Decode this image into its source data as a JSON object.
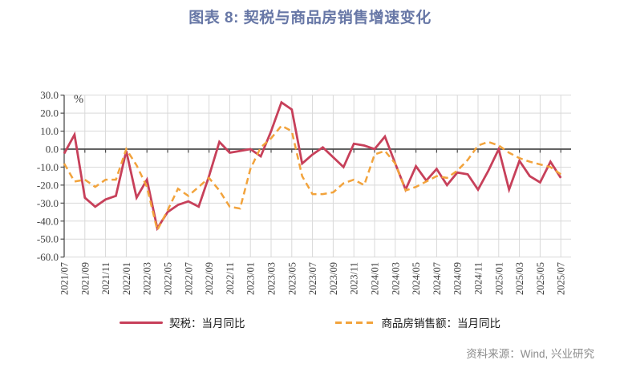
{
  "title": "图表 8: 契税与商品房销售增速变化",
  "unit_label": "%",
  "source": "资料来源：Wind, 兴业研究",
  "colors": {
    "deed_tax": "#c7405a",
    "housing_sales": "#f2a33c",
    "grid": "#d9d9d9",
    "axis": "#4d4d4d",
    "tick_text": "#404040",
    "title_text": "#6777a6",
    "source_text": "#8c8c8c"
  },
  "legend": [
    {
      "label": "契税：当月同比",
      "style": "solid"
    },
    {
      "label": "商品房销售额：当月同比",
      "style": "dashed"
    }
  ],
  "chart_data": {
    "type": "line",
    "title": "图表 8: 契税与商品房销售增速变化",
    "unit": "%",
    "ylim": [
      -60,
      30
    ],
    "ytick_step": 10,
    "ytick_labels": [
      "30.0",
      "20.0",
      "10.0",
      "0.0",
      "-10.0",
      "-20.0",
      "-30.0",
      "-40.0",
      "-50.0",
      "-60.0"
    ],
    "xtick_every": 2,
    "grid": true,
    "legend_position": "bottom",
    "categories": [
      "2021/07",
      "2021/08",
      "2021/09",
      "2021/10",
      "2021/11",
      "2021/12",
      "2022/01",
      "2022/02",
      "2022/03",
      "2022/04",
      "2022/05",
      "2022/06",
      "2022/07",
      "2022/08",
      "2022/09",
      "2022/10",
      "2022/11",
      "2022/12",
      "2023/01",
      "2023/02",
      "2023/03",
      "2023/04",
      "2023/05",
      "2023/06",
      "2023/07",
      "2023/08",
      "2023/09",
      "2023/10",
      "2023/11",
      "2023/12",
      "2024/01",
      "2024/02",
      "2024/03",
      "2024/04",
      "2024/05",
      "2024/06",
      "2024/07",
      "2024/08",
      "2024/09",
      "2024/10",
      "2024/11",
      "2024/12",
      "2025/01",
      "2025/02",
      "2025/03",
      "2025/04",
      "2025/05",
      "2025/06",
      "2025/07"
    ],
    "series": [
      {
        "name": "契税：当月同比",
        "style": "solid",
        "color": "#c7405a",
        "values": [
          -2.5,
          8,
          -27,
          -32,
          -28,
          -26,
          -1,
          -27,
          -17,
          -44,
          -35,
          -31,
          -29,
          -32,
          -15,
          4,
          -2,
          -1,
          0,
          -4,
          10,
          26,
          22,
          -8,
          -3,
          1,
          -4.5,
          -10,
          3,
          2,
          0,
          7,
          -8,
          -22.5,
          -9.5,
          -17.5,
          -11,
          -20,
          -13,
          -14,
          -22.5,
          -12,
          0,
          -22.5,
          -6.5,
          -15,
          -18.5,
          -7,
          -16
        ]
      },
      {
        "name": "商品房销售额：当月同比",
        "style": "dashed",
        "color": "#f2a33c",
        "values": [
          -8,
          -18,
          -17,
          -21,
          -17,
          -17,
          0,
          -9,
          -21,
          -45,
          -34,
          -22,
          -26,
          -21,
          -16,
          -23,
          -32,
          -33,
          -11,
          1,
          6,
          13,
          10,
          -15,
          -25,
          -25,
          -24,
          -19,
          -17,
          -20,
          -3,
          -1,
          -8,
          -23,
          -21,
          -18,
          -15,
          -16,
          -12,
          -6,
          2,
          4,
          2,
          -2,
          -5,
          -7,
          -8.5,
          -10,
          -14
        ]
      }
    ]
  }
}
